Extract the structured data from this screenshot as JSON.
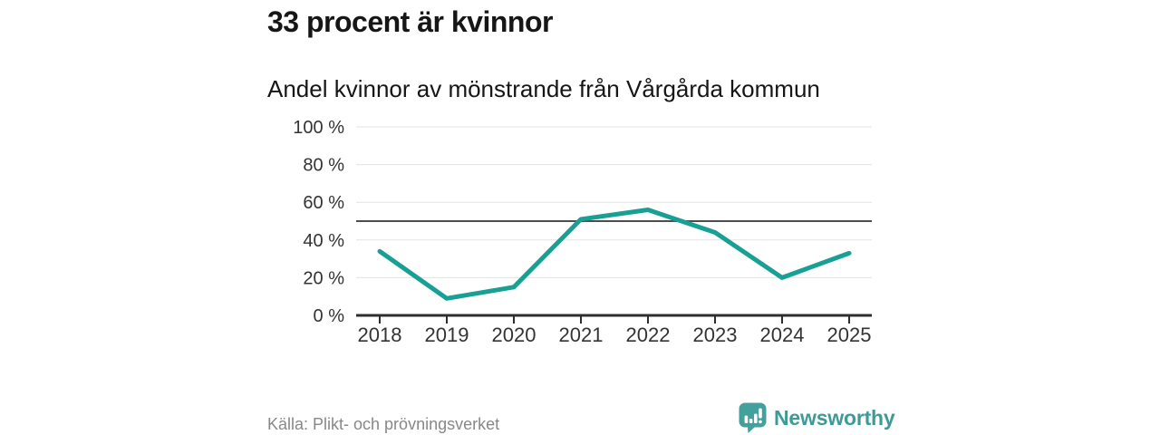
{
  "header": {
    "title": "33 procent är kvinnor",
    "subtitle": "Andel kvinnor av mönstrande från Vårgårda kommun"
  },
  "chart_data": {
    "type": "line",
    "title": "33 procent är kvinnor",
    "subtitle": "Andel kvinnor av mönstrande från Vårgårda kommun",
    "categories": [
      "2018",
      "2019",
      "2020",
      "2021",
      "2022",
      "2023",
      "2024",
      "2025"
    ],
    "series": [
      {
        "name": "Andel kvinnor av mönstrande",
        "values": [
          34,
          9,
          15,
          51,
          56,
          44,
          20,
          33
        ]
      }
    ],
    "xlabel": "",
    "ylabel": "",
    "ylim": [
      0,
      100
    ],
    "y_ticks": [
      0,
      20,
      40,
      60,
      80,
      100
    ],
    "y_tick_suffix": " %",
    "reference_line": 50,
    "grid": true,
    "legend": "none",
    "colors": {
      "line": "#17a093",
      "grid": "#e3e3e3",
      "reference_line": "#4d4d4d",
      "axis": "#2e2e2e",
      "tick_label": "#333333"
    }
  },
  "footer": {
    "source": "Källa: Plikt- och prövningsverket",
    "brand": "Newsworthy",
    "brand_color": "#3e9a96",
    "logo_color": "#43a09c"
  }
}
